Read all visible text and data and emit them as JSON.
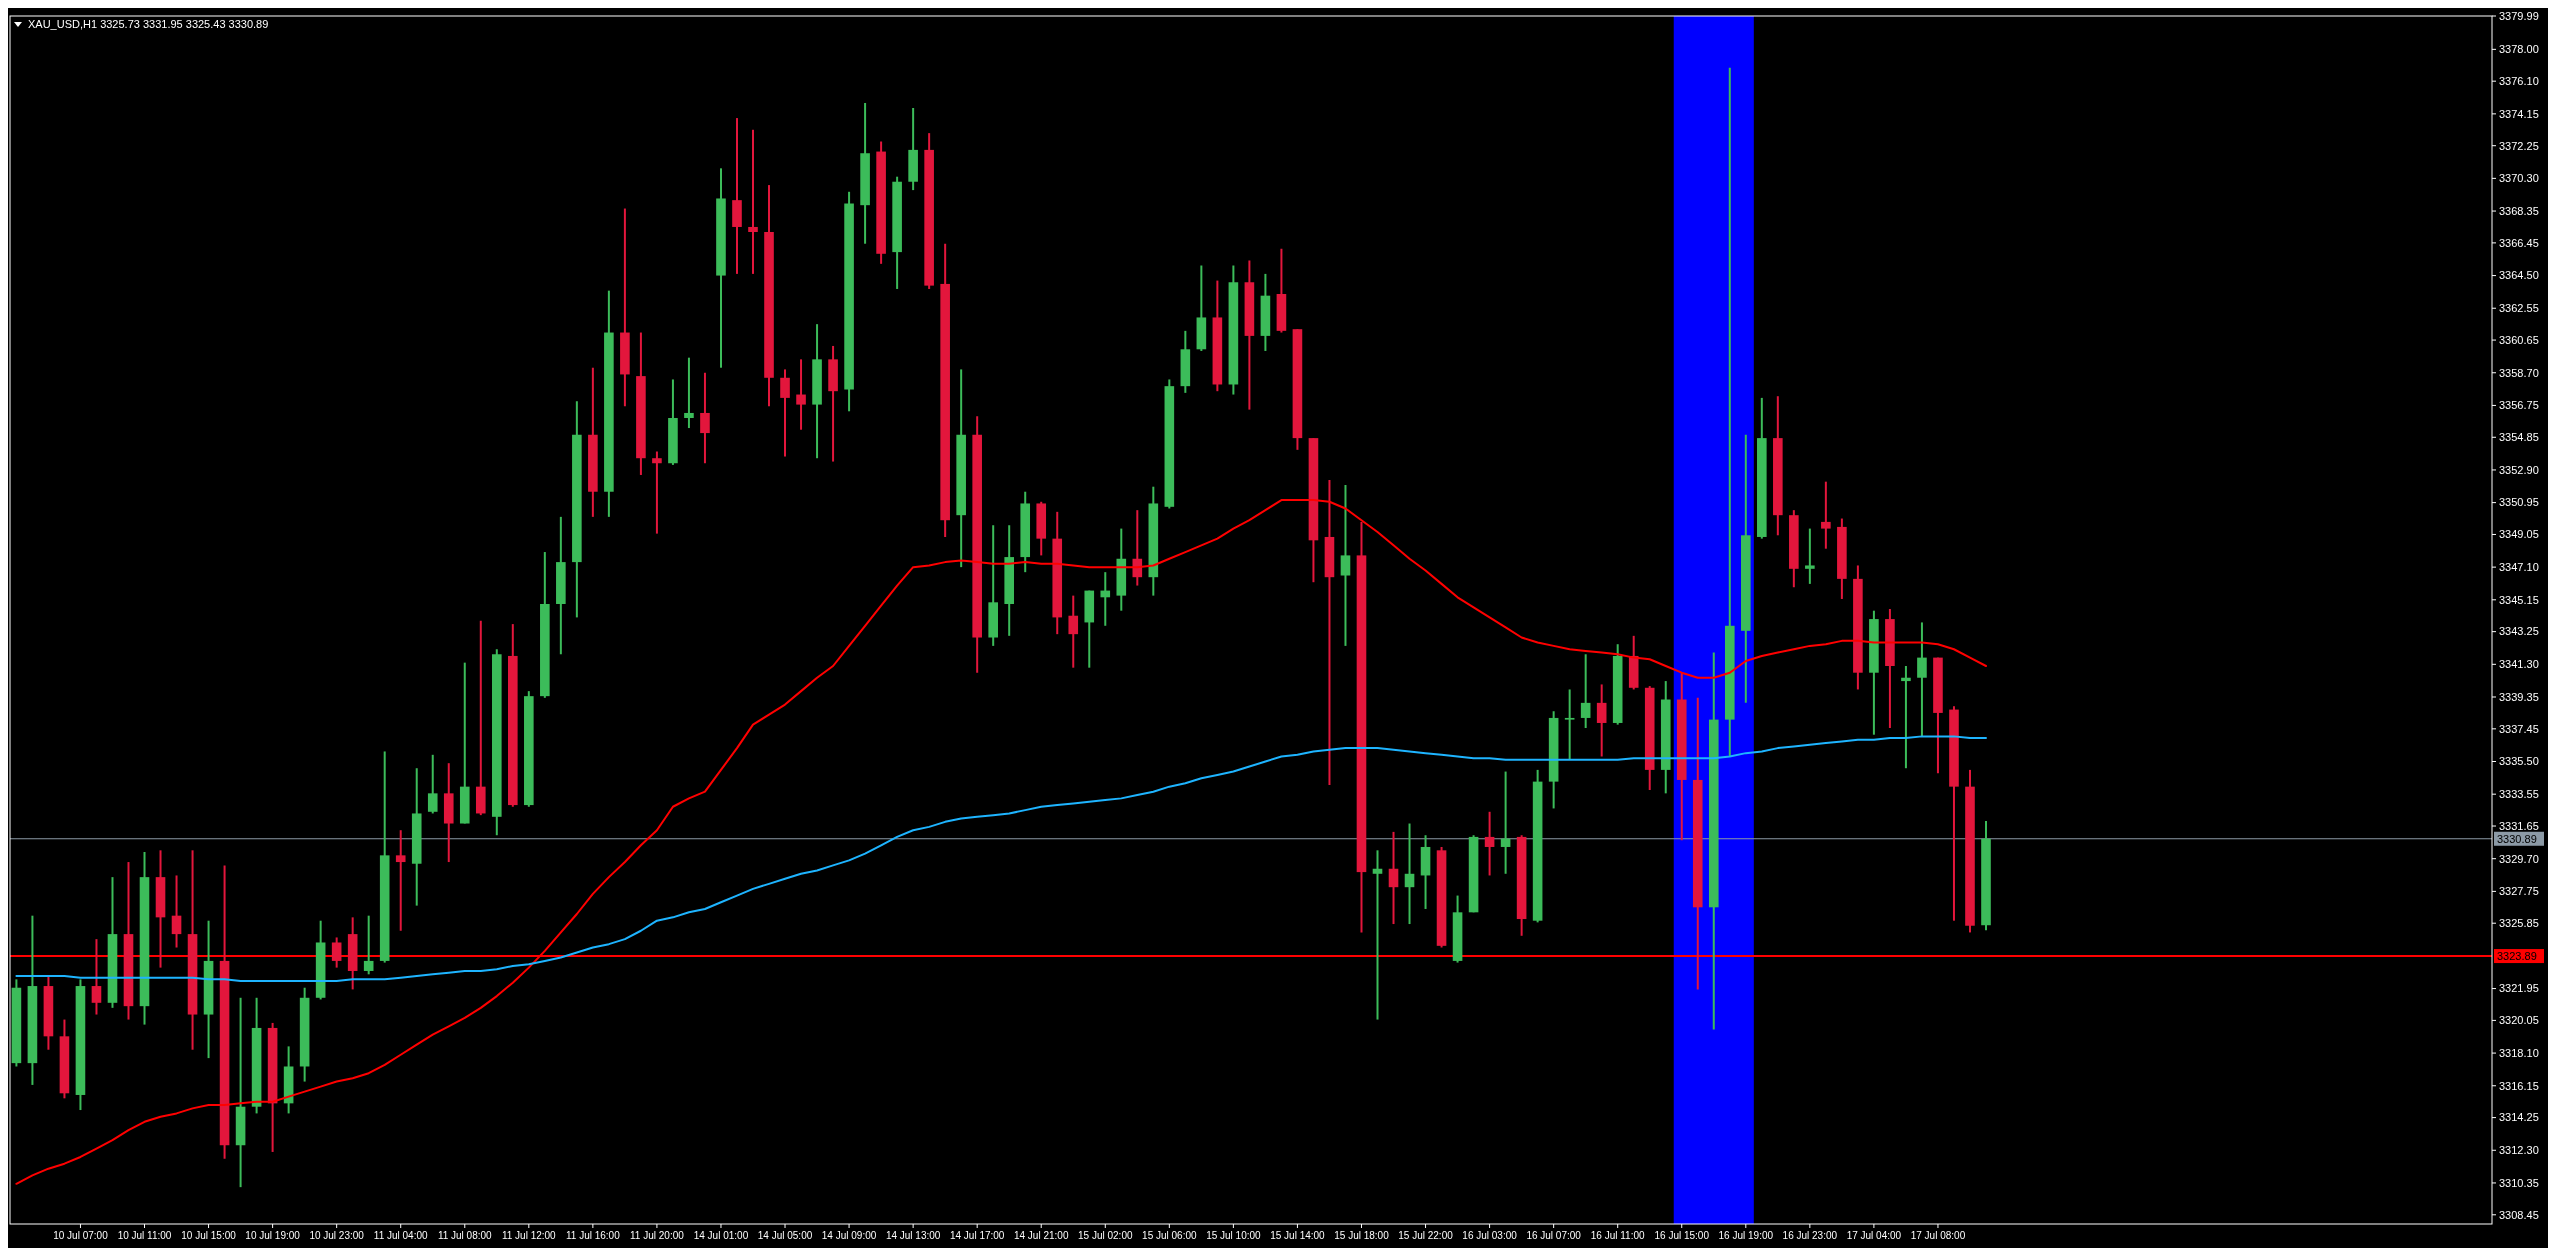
{
  "chart_data": {
    "type": "candlestick",
    "title": "XAU_USD,H1  3325.73 3331.95 3325.43 3330.89",
    "categories": [
      null,
      null,
      null,
      null,
      "10 Jul 07:00",
      null,
      null,
      null,
      "10 Jul 11:00",
      null,
      null,
      null,
      "10 Jul 15:00",
      null,
      null,
      null,
      "10 Jul 19:00",
      null,
      null,
      null,
      "10 Jul 23:00",
      null,
      null,
      null,
      "11 Jul 04:00",
      null,
      null,
      null,
      "11 Jul 08:00",
      null,
      null,
      null,
      "11 Jul 12:00",
      null,
      null,
      null,
      "11 Jul 16:00",
      null,
      null,
      null,
      "11 Jul 20:00",
      null,
      null,
      null,
      "14 Jul 01:00",
      null,
      null,
      null,
      "14 Jul 05:00",
      null,
      null,
      null,
      "14 Jul 09:00",
      null,
      null,
      null,
      "14 Jul 13:00",
      null,
      null,
      null,
      "14 Jul 17:00",
      null,
      null,
      null,
      "14 Jul 21:00",
      null,
      null,
      null,
      "15 Jul 02:00",
      null,
      null,
      null,
      "15 Jul 06:00",
      null,
      null,
      null,
      "15 Jul 10:00",
      null,
      null,
      null,
      "15 Jul 14:00",
      null,
      null,
      null,
      "15 Jul 18:00",
      null,
      null,
      null,
      "15 Jul 22:00",
      null,
      null,
      null,
      "16 Jul 03:00",
      null,
      null,
      null,
      "16 Jul 07:00",
      null,
      null,
      null,
      "16 Jul 11:00",
      null,
      null,
      null,
      "16 Jul 15:00",
      null,
      null,
      null,
      "16 Jul 19:00",
      null,
      null,
      null,
      "16 Jul 23:00",
      null,
      null,
      null,
      "17 Jul 04:00",
      null,
      null,
      null,
      "17 Jul 08:00",
      null,
      null,
      null
    ],
    "ohlc": [
      [
        3317.5,
        3322.5,
        3317.3,
        3322.0
      ],
      [
        3317.5,
        3326.3,
        3316.2,
        3322.1
      ],
      [
        3322.1,
        3322.7,
        3318.3,
        3319.1
      ],
      [
        3319.1,
        3320.1,
        3315.4,
        3315.7
      ],
      [
        3315.6,
        3322.5,
        3314.7,
        3322.1
      ],
      [
        3322.1,
        3324.9,
        3320.4,
        3321.1
      ],
      [
        3321.1,
        3328.6,
        3320.8,
        3325.2
      ],
      [
        3325.2,
        3329.5,
        3320.1,
        3320.9
      ],
      [
        3320.9,
        3330.1,
        3319.8,
        3328.6
      ],
      [
        3328.6,
        3330.2,
        3323.2,
        3326.2
      ],
      [
        3326.3,
        3328.7,
        3324.4,
        3325.2
      ],
      [
        3325.2,
        3330.2,
        3318.3,
        3320.4
      ],
      [
        3320.4,
        3326.0,
        3317.8,
        3323.6
      ],
      [
        3323.6,
        3329.3,
        3311.8,
        3312.6
      ],
      [
        3312.6,
        3321.4,
        3310.1,
        3314.9
      ],
      [
        3314.9,
        3321.4,
        3314.5,
        3319.6
      ],
      [
        3319.6,
        3319.9,
        3312.2,
        3315.1
      ],
      [
        3315.1,
        3318.5,
        3314.5,
        3317.3
      ],
      [
        3317.3,
        3322.0,
        3316.4,
        3321.4
      ],
      [
        3321.4,
        3326.0,
        3321.3,
        3324.7
      ],
      [
        3324.7,
        3325.0,
        3323.2,
        3323.6
      ],
      [
        3325.2,
        3326.2,
        3321.9,
        3323.0
      ],
      [
        3323.0,
        3326.3,
        3322.8,
        3323.6
      ],
      [
        3323.6,
        3336.1,
        3323.5,
        3329.9
      ],
      [
        3329.9,
        3331.4,
        3325.4,
        3329.5
      ],
      [
        3329.4,
        3335.1,
        3326.9,
        3332.4
      ],
      [
        3332.5,
        3335.9,
        3332.4,
        3333.6
      ],
      [
        3333.6,
        3335.4,
        3329.5,
        3331.8
      ],
      [
        3331.8,
        3341.4,
        3331.8,
        3334.0
      ],
      [
        3334.0,
        3343.9,
        3332.3,
        3332.4
      ],
      [
        3332.2,
        3342.2,
        3331.1,
        3341.9
      ],
      [
        3341.8,
        3343.7,
        3332.8,
        3332.9
      ],
      [
        3332.9,
        3339.7,
        3332.8,
        3339.4
      ],
      [
        3339.4,
        3348.0,
        3339.3,
        3344.9
      ],
      [
        3344.9,
        3350.1,
        3341.9,
        3347.4
      ],
      [
        3347.4,
        3357.0,
        3344.1,
        3355.0
      ],
      [
        3355.0,
        3359.0,
        3350.1,
        3351.6
      ],
      [
        3351.6,
        3363.6,
        3350.1,
        3361.1
      ],
      [
        3361.1,
        3368.5,
        3356.7,
        3358.6
      ],
      [
        3358.5,
        3361.1,
        3352.6,
        3353.6
      ],
      [
        3353.6,
        3354.0,
        3349.1,
        3353.3
      ],
      [
        3353.3,
        3358.3,
        3353.2,
        3356.0
      ],
      [
        3356.0,
        3359.6,
        3355.4,
        3356.3
      ],
      [
        3356.3,
        3358.7,
        3353.3,
        3355.1
      ],
      [
        3364.5,
        3370.9,
        3359.0,
        3369.1
      ],
      [
        3369.0,
        3373.9,
        3364.6,
        3367.4
      ],
      [
        3367.4,
        3373.2,
        3364.6,
        3367.1
      ],
      [
        3367.1,
        3369.9,
        3356.7,
        3358.4
      ],
      [
        3358.4,
        3358.9,
        3353.7,
        3357.2
      ],
      [
        3357.4,
        3359.5,
        3355.3,
        3356.8
      ],
      [
        3356.8,
        3361.6,
        3353.6,
        3359.5
      ],
      [
        3359.5,
        3360.3,
        3353.4,
        3357.6
      ],
      [
        3357.7,
        3369.5,
        3356.4,
        3368.8
      ],
      [
        3368.7,
        3374.8,
        3366.4,
        3371.8
      ],
      [
        3371.9,
        3372.5,
        3365.2,
        3365.8
      ],
      [
        3365.9,
        3370.4,
        3363.7,
        3370.1
      ],
      [
        3370.1,
        3374.5,
        3369.6,
        3372.0
      ],
      [
        3372.0,
        3373.0,
        3363.7,
        3363.9
      ],
      [
        3364.0,
        3366.4,
        3348.9,
        3349.9
      ],
      [
        3350.2,
        3358.9,
        3347.1,
        3355.0
      ],
      [
        3355.0,
        3356.1,
        3340.8,
        3342.9
      ],
      [
        3342.9,
        3349.6,
        3342.4,
        3345.0
      ],
      [
        3344.9,
        3349.6,
        3343.0,
        3347.7
      ],
      [
        3347.7,
        3351.6,
        3346.8,
        3350.9
      ],
      [
        3350.9,
        3351.0,
        3347.8,
        3348.8
      ],
      [
        3348.8,
        3350.4,
        3343.1,
        3344.1
      ],
      [
        3344.2,
        3345.4,
        3341.1,
        3343.1
      ],
      [
        3343.8,
        3345.7,
        3341.1,
        3345.7
      ],
      [
        3345.3,
        3346.8,
        3343.6,
        3345.7
      ],
      [
        3345.4,
        3349.4,
        3344.5,
        3347.6
      ],
      [
        3347.6,
        3350.5,
        3346.0,
        3346.5
      ],
      [
        3346.5,
        3351.9,
        3345.4,
        3350.9
      ],
      [
        3350.7,
        3358.3,
        3350.6,
        3357.9
      ],
      [
        3357.9,
        3361.2,
        3357.5,
        3360.1
      ],
      [
        3360.1,
        3365.1,
        3360.0,
        3362.0
      ],
      [
        3362.0,
        3364.2,
        3357.6,
        3358.0
      ],
      [
        3358.0,
        3365.1,
        3357.4,
        3364.1
      ],
      [
        3364.1,
        3365.4,
        3356.5,
        3360.9
      ],
      [
        3360.9,
        3364.6,
        3360.0,
        3363.3
      ],
      [
        3363.4,
        3366.1,
        3361.1,
        3361.2
      ],
      [
        3361.3,
        3361.3,
        3354.1,
        3354.8
      ],
      [
        3354.8,
        3354.8,
        3346.2,
        3348.7
      ],
      [
        3348.9,
        3352.3,
        3334.1,
        3346.5
      ],
      [
        3346.6,
        3352.0,
        3342.4,
        3347.8
      ],
      [
        3347.8,
        3349.8,
        3325.3,
        3328.9
      ],
      [
        3328.8,
        3330.2,
        3320.1,
        3329.1
      ],
      [
        3329.1,
        3331.3,
        3325.8,
        3328.0
      ],
      [
        3328.0,
        3331.8,
        3325.8,
        3328.8
      ],
      [
        3328.7,
        3331.1,
        3326.7,
        3330.4
      ],
      [
        3330.2,
        3330.4,
        3324.4,
        3324.5
      ],
      [
        3323.6,
        3327.5,
        3323.5,
        3326.5
      ],
      [
        3326.5,
        3331.1,
        3326.5,
        3331.0
      ],
      [
        3331.0,
        3332.5,
        3328.7,
        3330.4
      ],
      [
        3330.4,
        3334.9,
        3328.8,
        3330.9
      ],
      [
        3331.0,
        3331.1,
        3325.1,
        3326.1
      ],
      [
        3326.0,
        3335.0,
        3325.9,
        3334.3
      ],
      [
        3334.3,
        3338.5,
        3332.7,
        3338.1
      ],
      [
        3338.0,
        3339.8,
        3335.6,
        3338.1
      ],
      [
        3338.1,
        3341.9,
        3337.5,
        3339.0
      ],
      [
        3339.0,
        3340.1,
        3335.8,
        3337.8
      ],
      [
        3337.8,
        3342.5,
        3337.7,
        3341.8
      ],
      [
        3341.8,
        3343.0,
        3339.8,
        3339.9
      ],
      [
        3339.9,
        3340.0,
        3333.8,
        3335.0
      ],
      [
        3335.0,
        3340.3,
        3333.6,
        3339.2
      ],
      [
        3339.2,
        3340.8,
        3330.8,
        3334.4
      ],
      [
        3334.4,
        3339.3,
        3321.9,
        3326.8
      ],
      [
        3326.8,
        3342.0,
        3319.5,
        3338.0
      ],
      [
        3338.0,
        3376.9,
        3335.8,
        3343.6
      ],
      [
        3343.3,
        3355.0,
        3339.0,
        3349.0
      ],
      [
        3348.9,
        3357.2,
        3348.8,
        3354.8
      ],
      [
        3354.8,
        3357.3,
        3349.0,
        3350.2
      ],
      [
        3350.2,
        3350.5,
        3345.9,
        3347.0
      ],
      [
        3347.0,
        3349.4,
        3346.1,
        3347.2
      ],
      [
        3349.8,
        3352.2,
        3348.2,
        3349.4
      ],
      [
        3349.5,
        3350.0,
        3345.2,
        3346.4
      ],
      [
        3346.4,
        3347.2,
        3339.8,
        3340.8
      ],
      [
        3340.8,
        3344.5,
        3337.1,
        3344.0
      ],
      [
        3344.0,
        3344.6,
        3337.5,
        3341.2
      ],
      [
        3340.3,
        3341.2,
        3335.1,
        3340.5
      ],
      [
        3340.5,
        3343.8,
        3337.0,
        3341.7
      ],
      [
        3341.7,
        3341.7,
        3334.8,
        3338.4
      ],
      [
        3338.6,
        3338.8,
        3326.0,
        3334.0
      ],
      [
        3334.0,
        3335.0,
        3325.3,
        3325.7
      ],
      [
        3325.73,
        3331.95,
        3325.43,
        3330.89
      ]
    ],
    "colors": [
      "#3cbc5a",
      "#3cbc5a",
      "#e3163c",
      "#e3163c",
      "#3cbc5a",
      "#e3163c",
      "#3cbc5a",
      "#e3163c",
      "#3cbc5a",
      "#e3163c",
      "#e3163c",
      "#e3163c",
      "#3cbc5a",
      "#e3163c",
      "#3cbc5a",
      "#3cbc5a",
      "#e3163c",
      "#3cbc5a",
      "#3cbc5a",
      "#3cbc5a",
      "#e3163c",
      "#e3163c",
      "#3cbc5a",
      "#3cbc5a",
      "#e3163c",
      "#3cbc5a",
      "#3cbc5a",
      "#e3163c",
      "#3cbc5a",
      "#e3163c",
      "#3cbc5a",
      "#e3163c",
      "#3cbc5a",
      "#3cbc5a",
      "#3cbc5a",
      "#3cbc5a",
      "#e3163c",
      "#3cbc5a",
      "#e3163c",
      "#e3163c",
      "#e3163c",
      "#3cbc5a",
      "#3cbc5a",
      "#e3163c",
      "#3cbc5a",
      "#e3163c",
      "#e3163c",
      "#e3163c",
      "#e3163c",
      "#e3163c",
      "#3cbc5a",
      "#e3163c",
      "#3cbc5a",
      "#3cbc5a",
      "#e3163c",
      "#3cbc5a",
      "#3cbc5a",
      "#e3163c",
      "#e3163c",
      "#3cbc5a",
      "#e3163c",
      "#3cbc5a",
      "#3cbc5a",
      "#3cbc5a",
      "#e3163c",
      "#e3163c",
      "#e3163c",
      "#3cbc5a",
      "#3cbc5a",
      "#3cbc5a",
      "#e3163c",
      "#3cbc5a",
      "#3cbc5a",
      "#3cbc5a",
      "#3cbc5a",
      "#e3163c",
      "#3cbc5a",
      "#e3163c",
      "#3cbc5a",
      "#e3163c",
      "#e3163c",
      "#e3163c",
      "#e3163c",
      "#3cbc5a",
      "#e3163c",
      "#3cbc5a",
      "#e3163c",
      "#3cbc5a",
      "#3cbc5a",
      "#e3163c",
      "#3cbc5a",
      "#3cbc5a",
      "#e3163c",
      "#3cbc5a",
      "#e3163c",
      "#3cbc5a",
      "#3cbc5a",
      "#3cbc5a",
      "#3cbc5a",
      "#e3163c",
      "#3cbc5a",
      "#e3163c",
      "#e3163c",
      "#3cbc5a",
      "#e3163c",
      "#e3163c",
      "#3cbc5a",
      "#3cbc5a",
      "#3cbc5a",
      "#3cbc5a",
      "#e3163c",
      "#e3163c",
      "#3cbc5a",
      "#e3163c",
      "#e3163c",
      "#e3163c",
      "#3cbc5a",
      "#e3163c",
      "#3cbc5a",
      "#3cbc5a",
      "#e3163c",
      "#e3163c",
      "#e3163c",
      "#3cbc5a"
    ],
    "series": [
      {
        "type": "line",
        "color": "#ff0000",
        "values": [
          3310.3,
          3310.8,
          3311.2,
          3311.5,
          3311.9,
          3312.4,
          3312.9,
          3313.5,
          3314.0,
          3314.3,
          3314.5,
          3314.8,
          3315.0,
          3315.0,
          3315.1,
          3315.2,
          3315.2,
          3315.5,
          3315.8,
          3316.1,
          3316.4,
          3316.6,
          3316.9,
          3317.4,
          3318.0,
          3318.6,
          3319.2,
          3319.7,
          3320.2,
          3320.8,
          3321.5,
          3322.3,
          3323.2,
          3324.2,
          3325.3,
          3326.4,
          3327.6,
          3328.6,
          3329.5,
          3330.5,
          3331.4,
          3332.8,
          3333.3,
          3333.7,
          3335.0,
          3336.3,
          3337.7,
          3338.3,
          3338.9,
          3339.7,
          3340.5,
          3341.2,
          3342.4,
          3343.6,
          3344.8,
          3346.0,
          3347.1,
          3347.2,
          3347.4,
          3347.5,
          3347.4,
          3347.3,
          3347.3,
          3347.4,
          3347.3,
          3347.3,
          3347.2,
          3347.1,
          3347.1,
          3347.1,
          3347.1,
          3347.2,
          3347.6,
          3348.0,
          3348.4,
          3348.8,
          3349.4,
          3349.9,
          3350.5,
          3351.1,
          3351.1,
          3351.1,
          3351.0,
          3350.6,
          3349.9,
          3349.2,
          3348.4,
          3347.6,
          3346.9,
          3346.1,
          3345.3,
          3344.7,
          3344.1,
          3343.5,
          3342.9,
          3342.6,
          3342.4,
          3342.2,
          3342.1,
          3342.0,
          3341.9,
          3341.7,
          3341.6,
          3341.2,
          3340.8,
          3340.5,
          3340.5,
          3340.8,
          3341.5,
          3341.8,
          3342.0,
          3342.2,
          3342.4,
          3342.5,
          3342.7,
          3342.7,
          3342.6,
          3342.6,
          3342.6,
          3342.6,
          3342.5,
          3342.2,
          3341.7,
          3341.2
        ]
      },
      {
        "type": "line",
        "color": "#1eb4ff",
        "values": [
          3322.7,
          3322.7,
          3322.7,
          3322.7,
          3322.6,
          3322.6,
          3322.6,
          3322.6,
          3322.6,
          3322.6,
          3322.6,
          3322.6,
          3322.5,
          3322.5,
          3322.4,
          3322.4,
          3322.4,
          3322.4,
          3322.4,
          3322.4,
          3322.4,
          3322.5,
          3322.5,
          3322.5,
          3322.6,
          3322.7,
          3322.8,
          3322.9,
          3323.0,
          3323.0,
          3323.1,
          3323.3,
          3323.4,
          3323.6,
          3323.8,
          3324.1,
          3324.4,
          3324.6,
          3324.9,
          3325.4,
          3326.0,
          3326.2,
          3326.5,
          3326.7,
          3327.1,
          3327.5,
          3327.9,
          3328.2,
          3328.5,
          3328.8,
          3329.0,
          3329.3,
          3329.6,
          3330.0,
          3330.5,
          3331.0,
          3331.4,
          3331.6,
          3331.9,
          3332.1,
          3332.2,
          3332.3,
          3332.4,
          3332.6,
          3332.8,
          3332.9,
          3333.0,
          3333.1,
          3333.2,
          3333.3,
          3333.5,
          3333.7,
          3334.0,
          3334.2,
          3334.5,
          3334.7,
          3334.9,
          3335.2,
          3335.5,
          3335.8,
          3335.9,
          3336.1,
          3336.2,
          3336.3,
          3336.3,
          3336.3,
          3336.2,
          3336.1,
          3336.0,
          3335.9,
          3335.8,
          3335.7,
          3335.7,
          3335.6,
          3335.6,
          3335.6,
          3335.6,
          3335.6,
          3335.6,
          3335.6,
          3335.6,
          3335.7,
          3335.7,
          3335.7,
          3335.7,
          3335.7,
          3335.7,
          3335.8,
          3336.0,
          3336.1,
          3336.3,
          3336.4,
          3336.5,
          3336.6,
          3336.7,
          3336.8,
          3336.8,
          3336.9,
          3336.9,
          3337.0,
          3337.0,
          3337.0,
          3336.9,
          3336.9
        ]
      }
    ],
    "ylim": [
      3307.9,
      3379.99
    ],
    "yticks": [
      3379.99,
      {
        "value": 3378,
        "label": "3378.00"
      },
      {
        "value": 3376.1,
        "label": "3376.10"
      },
      3374.15,
      3372.25,
      {
        "value": 3370.3,
        "label": "3370.30"
      },
      3368.35,
      3366.45,
      {
        "value": 3364.5,
        "label": "3364.50"
      },
      3362.55,
      {
        "value": 3360.65,
        "label": "3360.65"
      },
      {
        "value": 3358.7,
        "label": "3358.70"
      },
      3356.75,
      3354.85,
      {
        "value": 3352.9,
        "label": "3352.90"
      },
      3350.95,
      3349.05,
      {
        "value": 3347.1,
        "label": "3347.10"
      },
      3345.15,
      3343.25,
      {
        "value": 3341.3,
        "label": "3341.30"
      },
      3339.35,
      3337.45,
      {
        "value": 3335.5,
        "label": "3335.50"
      },
      3333.55,
      3331.65,
      {
        "value": 3329.7,
        "label": "3329.70"
      },
      3327.75,
      3325.85,
      3321.95,
      {
        "value": 3320.05,
        "label": "3320.05"
      },
      {
        "value": 3318.1,
        "label": "3318.10"
      },
      3316.15,
      3314.25,
      {
        "value": 3312.3,
        "label": "3312.30"
      },
      3310.35,
      3308.45
    ],
    "ref_lines": [
      {
        "axis": "y",
        "value": 3323.89,
        "label": "3323.89",
        "color": "#ff0000"
      },
      {
        "axis": "y",
        "value": 3330.89,
        "label": "3330.89",
        "color": "#8c9aa6"
      }
    ],
    "bands": [
      {
        "axis": "x",
        "from": "16 Jul 15:00",
        "to": "16 Jul 19:00",
        "color": "#0000ff"
      }
    ]
  }
}
